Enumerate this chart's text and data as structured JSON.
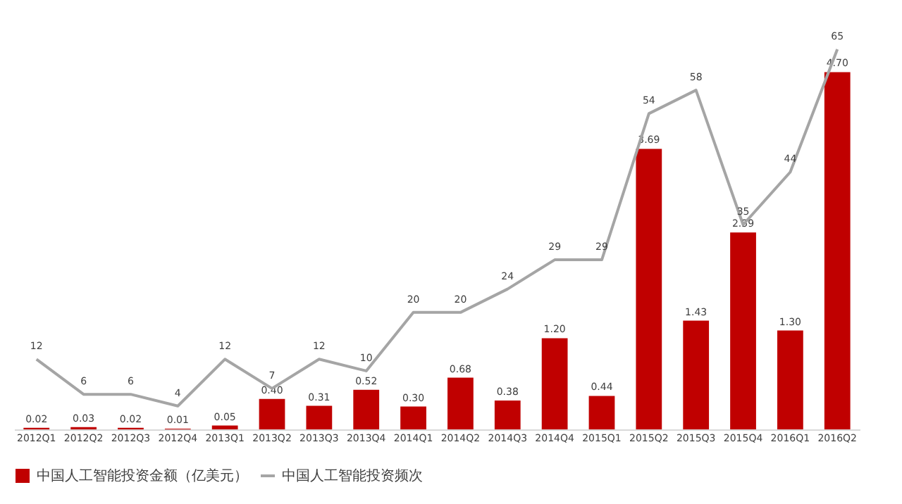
{
  "chart_data": {
    "type": "bar",
    "categories": [
      "2012Q1",
      "2012Q2",
      "2012Q3",
      "2012Q4",
      "2013Q1",
      "2013Q2",
      "2013Q3",
      "2013Q4",
      "2014Q1",
      "2014Q2",
      "2014Q3",
      "2014Q4",
      "2015Q1",
      "2015Q2",
      "2015Q3",
      "2015Q4",
      "2016Q1",
      "2016Q2"
    ],
    "series": [
      {
        "name": "中国人工智能投资金额（亿美元）",
        "color": "#c00000",
        "values": [
          0.02,
          0.03,
          0.02,
          0.01,
          0.05,
          0.4,
          0.31,
          0.52,
          0.3,
          0.68,
          0.38,
          1.2,
          0.44,
          3.69,
          1.43,
          2.59,
          1.3,
          4.7
        ],
        "value_labels": [
          "0.02",
          "0.03",
          "0.02",
          "0.01",
          "0.05",
          "0.40",
          "0.31",
          "0.52",
          "0.30",
          "0.68",
          "0.38",
          "1.20",
          "0.44",
          "3.69",
          "1.43",
          "2.59",
          "1.30",
          "4.70"
        ]
      },
      {
        "name": "中国人工智能投资频次",
        "type": "line",
        "axis": "y2",
        "color": "#a5a5a5",
        "values": [
          12,
          6,
          6,
          4,
          12,
          7,
          12,
          10,
          20,
          20,
          24,
          29,
          29,
          54,
          58,
          35,
          44,
          65
        ],
        "value_labels": [
          "12",
          "6",
          "6",
          "4",
          "12",
          "7",
          "12",
          "10",
          "20",
          "20",
          "24",
          "29",
          "29",
          "54",
          "58",
          "35",
          "44",
          "65"
        ]
      }
    ],
    "legend": "bottom",
    "grid": false,
    "tick_labels": "x"
  }
}
